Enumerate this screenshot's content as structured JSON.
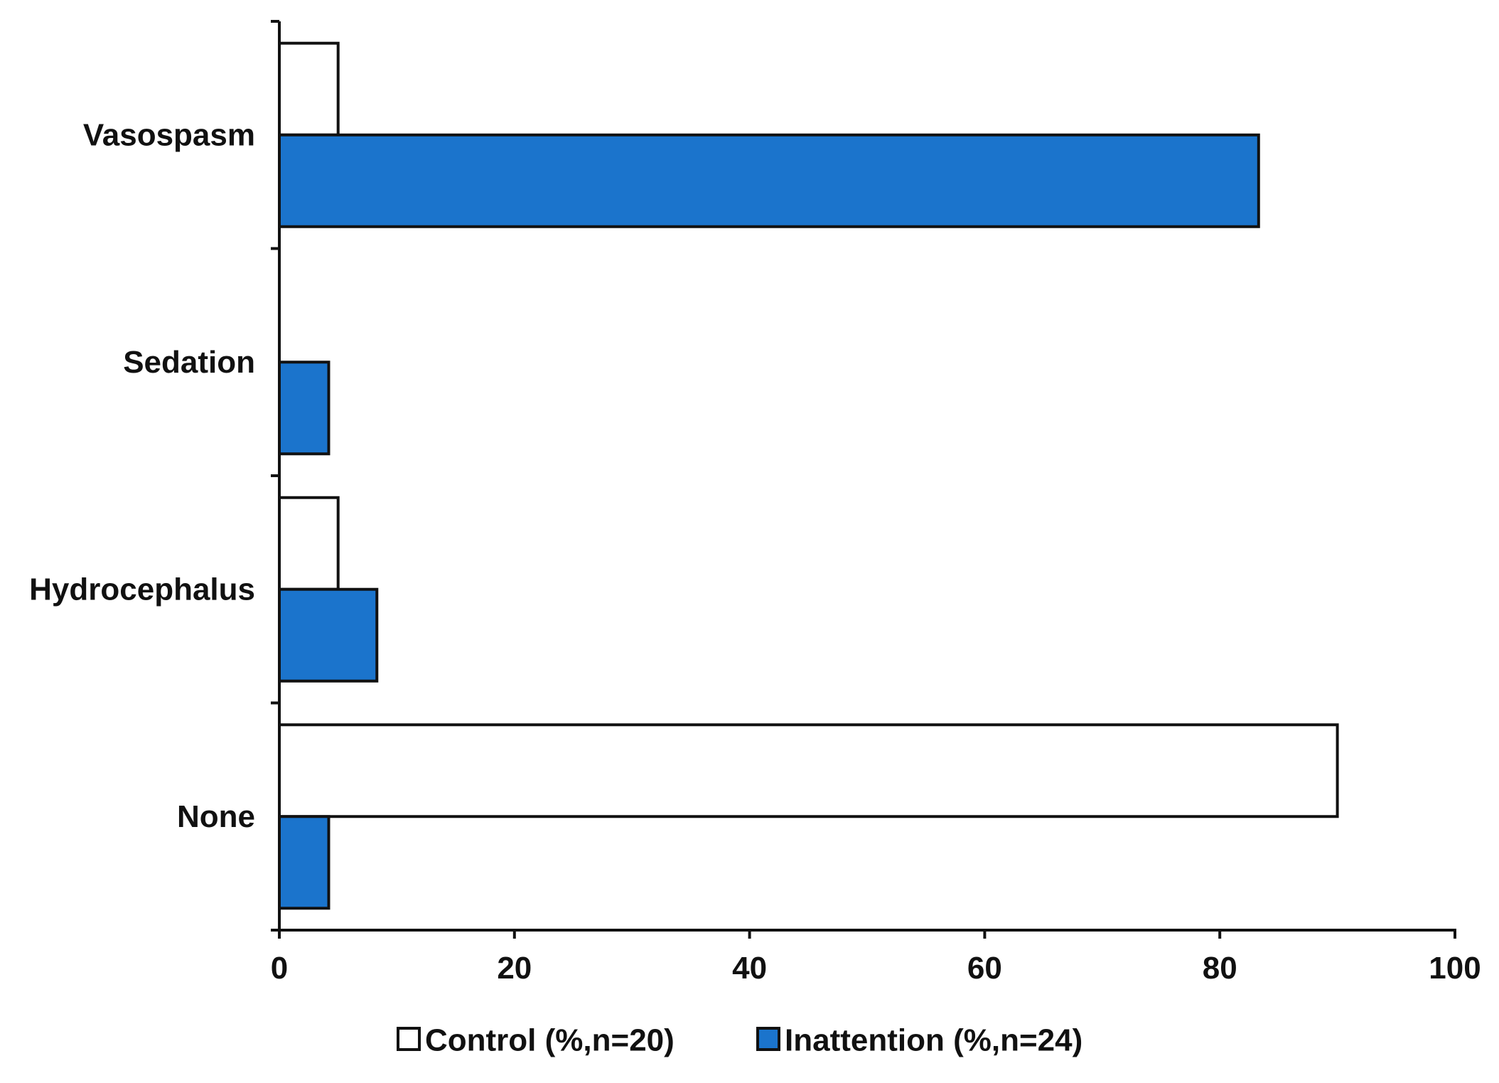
{
  "chart_data": {
    "type": "bar",
    "orientation": "horizontal",
    "categories": [
      "Vasospasm",
      "Sedation",
      "Hydrocephalus",
      "None"
    ],
    "series": [
      {
        "name": "Control (%,n=20)",
        "values": [
          5,
          0,
          5,
          90
        ],
        "color": "#ffffff",
        "stroke": "#111111"
      },
      {
        "name": "Inattention (%,n=24)",
        "values": [
          83.3,
          4.2,
          8.3,
          4.2
        ],
        "color": "#1b74cc",
        "stroke": "#111111"
      }
    ],
    "xlim": [
      0,
      100
    ],
    "xticks": [
      0,
      20,
      40,
      60,
      80,
      100
    ],
    "xtick_labels": [
      "0",
      "20",
      "40",
      "60",
      "80",
      "100"
    ],
    "title": "",
    "xlabel": "",
    "ylabel": "",
    "grid": false,
    "legend_position": "bottom-center"
  }
}
